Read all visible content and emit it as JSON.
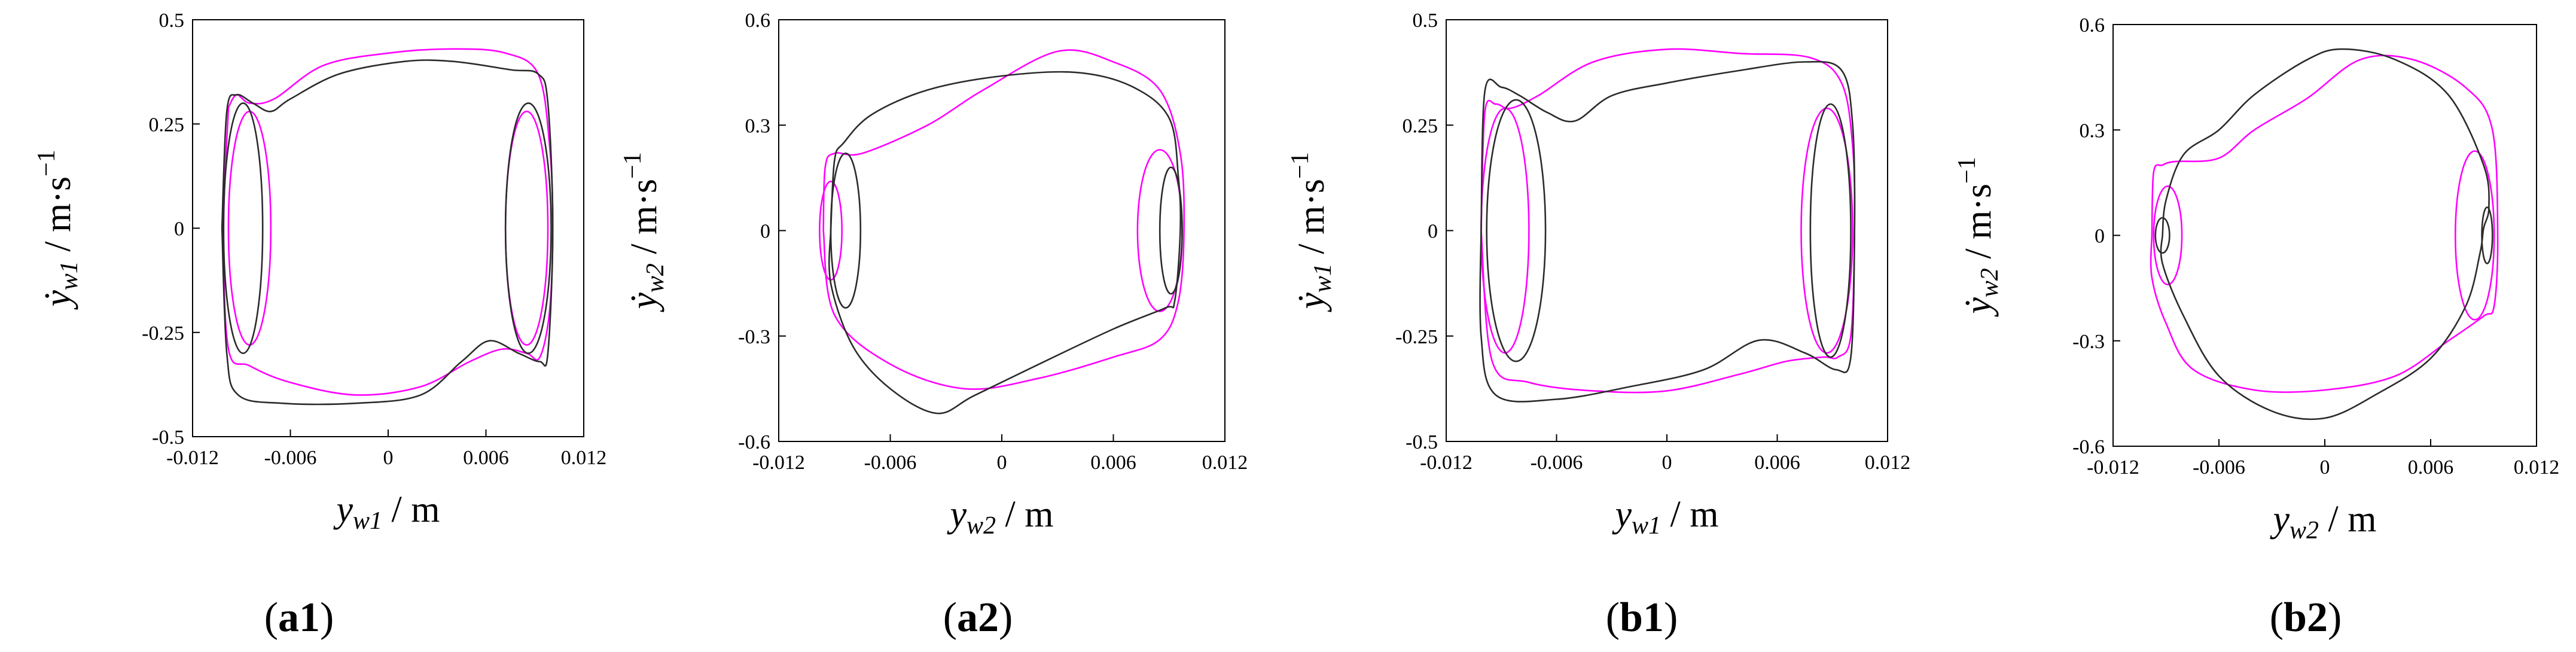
{
  "figure": {
    "colors": {
      "series_a": "#ff00ff",
      "series_b": "#2b2b2b",
      "axes": "#000000"
    }
  },
  "chart_data": [
    {
      "type": "line",
      "panel": "a1",
      "caption": {
        "open": "(",
        "label": "a1",
        "close": ")"
      },
      "xlabel": {
        "var": "y",
        "sub": "w1",
        "unit": " / m"
      },
      "ylabel": {
        "var": "ẏ",
        "sub": "w1",
        "unit": " / m·s",
        "sup": "−1"
      },
      "xlim": [
        -0.012,
        0.012
      ],
      "ylim": [
        -0.5,
        0.5
      ],
      "xticks": [
        "-0.012",
        "-0.006",
        "0",
        "0.006",
        "0.012"
      ],
      "yticks": [
        "0.5",
        "0.25",
        "0",
        "-0.25",
        "-0.5"
      ],
      "series": [
        {
          "name": "magenta",
          "color": "#ff00ff",
          "points": [
            [
              -0.0098,
              0.29
            ],
            [
              -0.0093,
              0.32
            ],
            [
              -0.0085,
              0.3
            ],
            [
              -0.007,
              0.31
            ],
            [
              -0.004,
              0.39
            ],
            [
              0.0,
              0.42
            ],
            [
              0.004,
              0.43
            ],
            [
              0.0072,
              0.42
            ],
            [
              0.0092,
              0.37
            ],
            [
              0.0099,
              0.2
            ],
            [
              0.0101,
              0.0
            ],
            [
              0.0099,
              -0.2
            ],
            [
              0.0093,
              -0.31
            ],
            [
              0.0085,
              -0.3
            ],
            [
              0.007,
              -0.29
            ],
            [
              0.005,
              -0.32
            ],
            [
              0.002,
              -0.38
            ],
            [
              -0.002,
              -0.4
            ],
            [
              -0.006,
              -0.37
            ],
            [
              -0.0085,
              -0.33
            ],
            [
              -0.0098,
              -0.29
            ],
            [
              -0.0101,
              0.0
            ],
            [
              -0.0098,
              0.29
            ]
          ],
          "loops": [
            {
              "cx": -0.0085,
              "cy": 0.0,
              "rx": 0.0013,
              "ry": 0.28
            },
            {
              "cx": 0.0085,
              "cy": 0.0,
              "rx": 0.0013,
              "ry": 0.28
            }
          ]
        },
        {
          "name": "black",
          "color": "#2b2b2b",
          "points": [
            [
              -0.0102,
              0.0
            ],
            [
              -0.0099,
              0.28
            ],
            [
              -0.0093,
              0.32
            ],
            [
              -0.0083,
              0.3
            ],
            [
              -0.0072,
              0.28
            ],
            [
              -0.006,
              0.31
            ],
            [
              -0.003,
              0.37
            ],
            [
              0.001,
              0.4
            ],
            [
              0.004,
              0.4
            ],
            [
              0.0075,
              0.38
            ],
            [
              0.0092,
              0.37
            ],
            [
              0.0098,
              0.3
            ],
            [
              0.0101,
              0.0
            ],
            [
              0.0098,
              -0.3
            ],
            [
              0.0093,
              -0.32
            ],
            [
              0.008,
              -0.3
            ],
            [
              0.0062,
              -0.27
            ],
            [
              0.0045,
              -0.32
            ],
            [
              0.002,
              -0.4
            ],
            [
              -0.002,
              -0.42
            ],
            [
              -0.0065,
              -0.42
            ],
            [
              -0.0092,
              -0.4
            ],
            [
              -0.0099,
              -0.3
            ],
            [
              -0.0102,
              0.0
            ]
          ],
          "loops": [
            {
              "cx": -0.0089,
              "cy": 0.0,
              "rx": 0.0012,
              "ry": 0.3
            },
            {
              "cx": 0.0086,
              "cy": 0.0,
              "rx": 0.0014,
              "ry": 0.3
            }
          ]
        }
      ]
    },
    {
      "type": "line",
      "panel": "a2",
      "caption": {
        "open": "(",
        "label": "a2",
        "close": ")"
      },
      "xlabel": {
        "var": "y",
        "sub": "w2",
        "unit": " / m"
      },
      "ylabel": {
        "var": "ẏ",
        "sub": "w2",
        "unit": " / m·s",
        "sup": "−1"
      },
      "xlim": [
        -0.012,
        0.012
      ],
      "ylim": [
        -0.6,
        0.6
      ],
      "xticks": [
        "-0.012",
        "-0.006",
        "0",
        "0.006",
        "0.012"
      ],
      "yticks": [
        "0.6",
        "0.3",
        "0",
        "-0.3",
        "-0.6"
      ],
      "series": [
        {
          "name": "magenta",
          "color": "#ff00ff",
          "points": [
            [
              -0.0096,
              0.0
            ],
            [
              -0.0095,
              0.18
            ],
            [
              -0.009,
              0.22
            ],
            [
              -0.0075,
              0.22
            ],
            [
              -0.004,
              0.3
            ],
            [
              -0.001,
              0.4
            ],
            [
              0.003,
              0.51
            ],
            [
              0.006,
              0.48
            ],
            [
              0.0085,
              0.4
            ],
            [
              0.0096,
              0.22
            ],
            [
              0.0098,
              0.0
            ],
            [
              0.0095,
              -0.2
            ],
            [
              0.0085,
              -0.31
            ],
            [
              0.006,
              -0.36
            ],
            [
              0.002,
              -0.42
            ],
            [
              -0.002,
              -0.45
            ],
            [
              -0.006,
              -0.38
            ],
            [
              -0.009,
              -0.24
            ],
            [
              -0.0096,
              0.0
            ]
          ],
          "loops": [
            {
              "cx": -0.0092,
              "cy": 0.0,
              "rx": 0.0006,
              "ry": 0.14
            },
            {
              "cx": 0.0085,
              "cy": 0.0,
              "rx": 0.0012,
              "ry": 0.23
            }
          ]
        },
        {
          "name": "black",
          "color": "#2b2b2b",
          "points": [
            [
              -0.0092,
              0.0
            ],
            [
              -0.009,
              0.2
            ],
            [
              -0.0085,
              0.25
            ],
            [
              -0.007,
              0.33
            ],
            [
              -0.004,
              0.4
            ],
            [
              0.0,
              0.44
            ],
            [
              0.004,
              0.45
            ],
            [
              0.007,
              0.41
            ],
            [
              0.009,
              0.32
            ],
            [
              0.0095,
              0.15
            ],
            [
              0.0096,
              0.0
            ],
            [
              0.0093,
              -0.2
            ],
            [
              0.0088,
              -0.22
            ],
            [
              0.006,
              -0.28
            ],
            [
              0.002,
              -0.38
            ],
            [
              -0.0015,
              -0.47
            ],
            [
              -0.0035,
              -0.52
            ],
            [
              -0.006,
              -0.45
            ],
            [
              -0.008,
              -0.33
            ],
            [
              -0.0092,
              -0.15
            ],
            [
              -0.0092,
              0.0
            ]
          ],
          "loops": [
            {
              "cx": -0.0084,
              "cy": 0.0,
              "rx": 0.0008,
              "ry": 0.22
            },
            {
              "cx": 0.0091,
              "cy": 0.0,
              "rx": 0.0006,
              "ry": 0.18
            }
          ]
        }
      ]
    },
    {
      "type": "line",
      "panel": "b1",
      "caption": {
        "open": "(",
        "label": "b1",
        "close": ")"
      },
      "xlabel": {
        "var": "y",
        "sub": "w1",
        "unit": " / m"
      },
      "ylabel": {
        "var": "ẏ",
        "sub": "w1",
        "unit": " / m·s",
        "sup": "−1"
      },
      "xlim": [
        -0.012,
        0.012
      ],
      "ylim": [
        -0.5,
        0.5
      ],
      "xticks": [
        "-0.012",
        "-0.006",
        "0",
        "0.006",
        "0.012"
      ],
      "yticks": [
        "0.5",
        "0.25",
        "0",
        "-0.25",
        "-0.5"
      ],
      "series": [
        {
          "name": "magenta",
          "color": "#ff00ff",
          "points": [
            [
              -0.0101,
              0.0
            ],
            [
              -0.0099,
              0.28
            ],
            [
              -0.0093,
              0.3
            ],
            [
              -0.0085,
              0.29
            ],
            [
              -0.007,
              0.32
            ],
            [
              -0.004,
              0.4
            ],
            [
              0.0,
              0.43
            ],
            [
              0.004,
              0.42
            ],
            [
              0.0078,
              0.41
            ],
            [
              0.0095,
              0.35
            ],
            [
              0.0101,
              0.2
            ],
            [
              0.0102,
              0.0
            ],
            [
              0.01,
              -0.25
            ],
            [
              0.0093,
              -0.3
            ],
            [
              0.0085,
              -0.3
            ],
            [
              0.0065,
              -0.31
            ],
            [
              0.004,
              -0.34
            ],
            [
              0.0,
              -0.38
            ],
            [
              -0.004,
              -0.38
            ],
            [
              -0.0075,
              -0.36
            ],
            [
              -0.0095,
              -0.31
            ],
            [
              -0.0101,
              0.0
            ]
          ],
          "loops": [
            {
              "cx": -0.0088,
              "cy": 0.0,
              "rx": 0.0013,
              "ry": 0.29
            },
            {
              "cx": 0.0087,
              "cy": 0.0,
              "rx": 0.0014,
              "ry": 0.29
            }
          ]
        },
        {
          "name": "black",
          "color": "#2b2b2b",
          "points": [
            [
              -0.0101,
              0.0
            ],
            [
              -0.0099,
              0.33
            ],
            [
              -0.009,
              0.34
            ],
            [
              -0.008,
              0.32
            ],
            [
              -0.0065,
              0.28
            ],
            [
              -0.005,
              0.26
            ],
            [
              -0.003,
              0.32
            ],
            [
              0.0,
              0.35
            ],
            [
              0.004,
              0.38
            ],
            [
              0.0075,
              0.4
            ],
            [
              0.0095,
              0.38
            ],
            [
              0.0101,
              0.25
            ],
            [
              0.0102,
              0.0
            ],
            [
              0.01,
              -0.3
            ],
            [
              0.0092,
              -0.33
            ],
            [
              0.0075,
              -0.29
            ],
            [
              0.005,
              -0.26
            ],
            [
              0.002,
              -0.33
            ],
            [
              -0.002,
              -0.37
            ],
            [
              -0.006,
              -0.4
            ],
            [
              -0.0093,
              -0.39
            ],
            [
              -0.0101,
              -0.25
            ],
            [
              -0.0101,
              0.0
            ]
          ],
          "loops": [
            {
              "cx": -0.0082,
              "cy": 0.0,
              "rx": 0.0016,
              "ry": 0.31
            },
            {
              "cx": 0.0089,
              "cy": 0.0,
              "rx": 0.0011,
              "ry": 0.3
            }
          ]
        }
      ]
    },
    {
      "type": "line",
      "panel": "b2",
      "caption": {
        "open": "(",
        "label": "b2",
        "close": ")"
      },
      "xlabel": {
        "var": "y",
        "sub": "w2",
        "unit": " / m"
      },
      "ylabel": {
        "var": "ẏ",
        "sub": "w2",
        "unit": " / m·s",
        "sup": "−1"
      },
      "xlim": [
        -0.012,
        0.012
      ],
      "ylim": [
        -0.6,
        0.6
      ],
      "xticks": [
        "-0.012",
        "-0.006",
        "0",
        "0.006",
        "0.012"
      ],
      "yticks": [
        "0.6",
        "0.3",
        "0",
        "-0.3",
        "-0.6"
      ],
      "series": [
        {
          "name": "magenta",
          "color": "#ff00ff",
          "points": [
            [
              -0.0098,
              0.0
            ],
            [
              -0.0097,
              0.18
            ],
            [
              -0.0092,
              0.2
            ],
            [
              -0.0085,
              0.21
            ],
            [
              -0.006,
              0.22
            ],
            [
              -0.004,
              0.3
            ],
            [
              -0.001,
              0.39
            ],
            [
              0.002,
              0.5
            ],
            [
              0.005,
              0.5
            ],
            [
              0.008,
              0.42
            ],
            [
              0.0095,
              0.3
            ],
            [
              0.0098,
              0.0
            ],
            [
              0.0096,
              -0.2
            ],
            [
              0.009,
              -0.23
            ],
            [
              0.007,
              -0.3
            ],
            [
              0.004,
              -0.4
            ],
            [
              0.0,
              -0.44
            ],
            [
              -0.004,
              -0.44
            ],
            [
              -0.0075,
              -0.38
            ],
            [
              -0.009,
              -0.25
            ],
            [
              -0.0098,
              -0.12
            ],
            [
              -0.0098,
              0.0
            ]
          ],
          "loops": [
            {
              "cx": -0.0089,
              "cy": 0.0,
              "rx": 0.0008,
              "ry": 0.14
            },
            {
              "cx": 0.0085,
              "cy": 0.0,
              "rx": 0.0011,
              "ry": 0.24
            }
          ]
        },
        {
          "name": "black",
          "color": "#2b2b2b",
          "points": [
            [
              -0.0092,
              0.0
            ],
            [
              -0.009,
              0.1
            ],
            [
              -0.008,
              0.23
            ],
            [
              -0.006,
              0.3
            ],
            [
              -0.004,
              0.4
            ],
            [
              -0.001,
              0.5
            ],
            [
              0.001,
              0.53
            ],
            [
              0.004,
              0.5
            ],
            [
              0.007,
              0.4
            ],
            [
              0.009,
              0.2
            ],
            [
              0.0093,
              0.08
            ],
            [
              0.009,
              0.02
            ],
            [
              0.0088,
              -0.05
            ],
            [
              0.008,
              -0.2
            ],
            [
              0.006,
              -0.35
            ],
            [
              0.003,
              -0.45
            ],
            [
              0.0,
              -0.52
            ],
            [
              -0.003,
              -0.5
            ],
            [
              -0.006,
              -0.4
            ],
            [
              -0.008,
              -0.23
            ],
            [
              -0.0092,
              -0.08
            ],
            [
              -0.0092,
              0.0
            ]
          ],
          "loops": [
            {
              "cx": -0.0092,
              "cy": 0.0,
              "rx": 0.0004,
              "ry": 0.05
            },
            {
              "cx": 0.0092,
              "cy": 0.0,
              "rx": 0.0003,
              "ry": 0.08
            }
          ]
        }
      ]
    }
  ]
}
